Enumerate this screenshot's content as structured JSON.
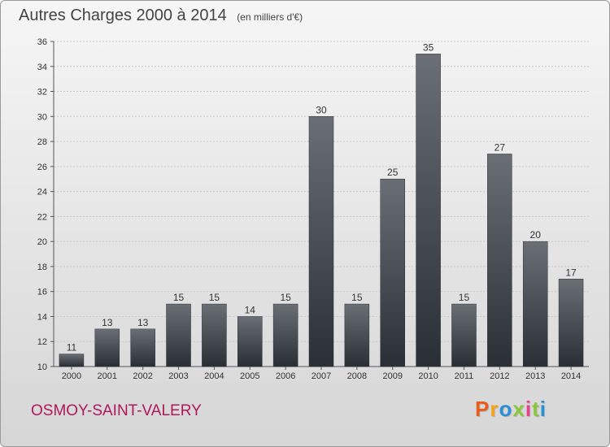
{
  "chart_data": {
    "type": "bar",
    "title": "Autres Charges 2000 à 2014",
    "subtitle": "(en milliers d'€)",
    "categories": [
      "2000",
      "2001",
      "2002",
      "2003",
      "2004",
      "2005",
      "2006",
      "2007",
      "2008",
      "2009",
      "2010",
      "2011",
      "2012",
      "2013",
      "2014"
    ],
    "values": [
      11,
      13,
      13,
      15,
      15,
      14,
      15,
      30,
      15,
      25,
      35,
      15,
      27,
      20,
      17
    ],
    "ylim": [
      10,
      36
    ],
    "yticks": [
      10,
      12,
      14,
      16,
      18,
      20,
      22,
      24,
      26,
      28,
      30,
      32,
      34,
      36
    ],
    "grid": true,
    "data_labels": true,
    "bar_color": "#3b4047"
  },
  "commune": "OSMOY-SAINT-VALERY",
  "logo": {
    "letters": [
      "P",
      "r",
      "o",
      "x",
      "i",
      "t",
      "i"
    ],
    "colors": [
      "#e85b1f",
      "#f2a21b",
      "#2b8fd6",
      "#8cc63f",
      "#e83f8e",
      "#8cc63f",
      "#2b8fd6"
    ]
  },
  "colors": {
    "title": "#444444",
    "commune": "#b0185b",
    "grid": "#c8c8c8"
  }
}
